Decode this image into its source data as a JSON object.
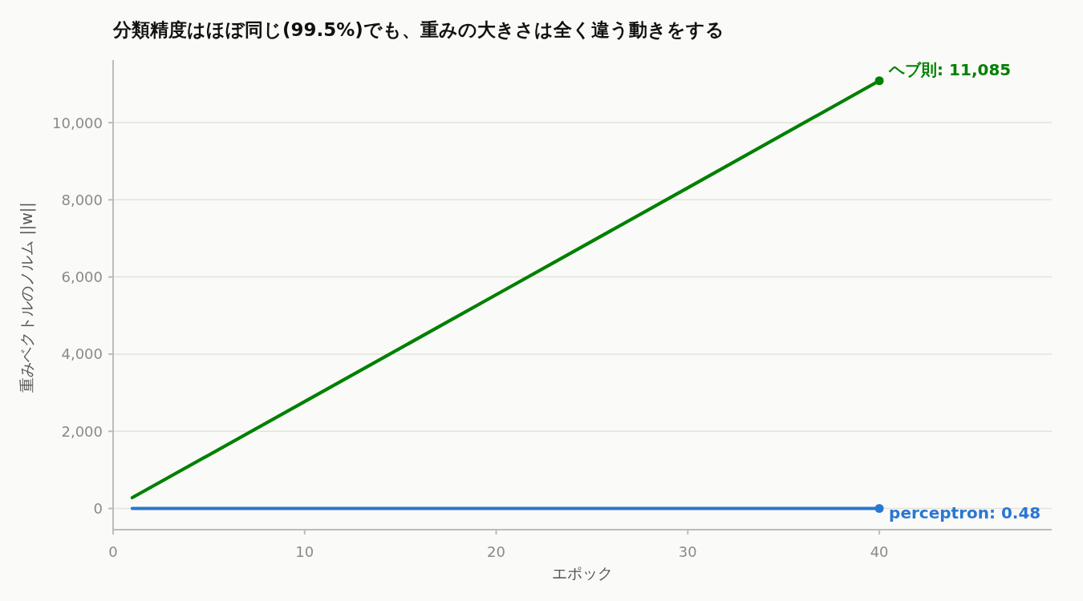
{
  "chart_data": {
    "type": "line",
    "title": "分類精度はほぼ同じ(99.5%)でも、重みの大きさは全く違う動きをする",
    "xlabel": "エポック",
    "ylabel": "重みベクトルのノルム ||w||",
    "xlim": [
      0,
      49
    ],
    "ylim": [
      -550,
      11620
    ],
    "xticks": [
      0,
      10,
      20,
      30,
      40
    ],
    "yticks": [
      0,
      {
        "value": 2000,
        "label": "2,000"
      },
      {
        "value": 4000,
        "label": "4,000"
      },
      {
        "value": 6000,
        "label": "6,000"
      },
      {
        "value": 8000,
        "label": "8,000"
      },
      {
        "value": 10000,
        "label": "10,000"
      }
    ],
    "grid": "y",
    "series": [
      {
        "color": "#008000",
        "x": [
          1,
          10,
          20,
          30,
          40
        ],
        "values": [
          280,
          2770,
          5540,
          8310,
          11085
        ],
        "value_labels": [
          null,
          null,
          null,
          null,
          "ヘブ則: 11,085"
        ]
      },
      {
        "color": "#2b77d3",
        "x": [
          1,
          40
        ],
        "values": [
          0,
          0.48
        ],
        "value_labels": [
          null,
          "perceptron: 0.48"
        ]
      }
    ]
  }
}
